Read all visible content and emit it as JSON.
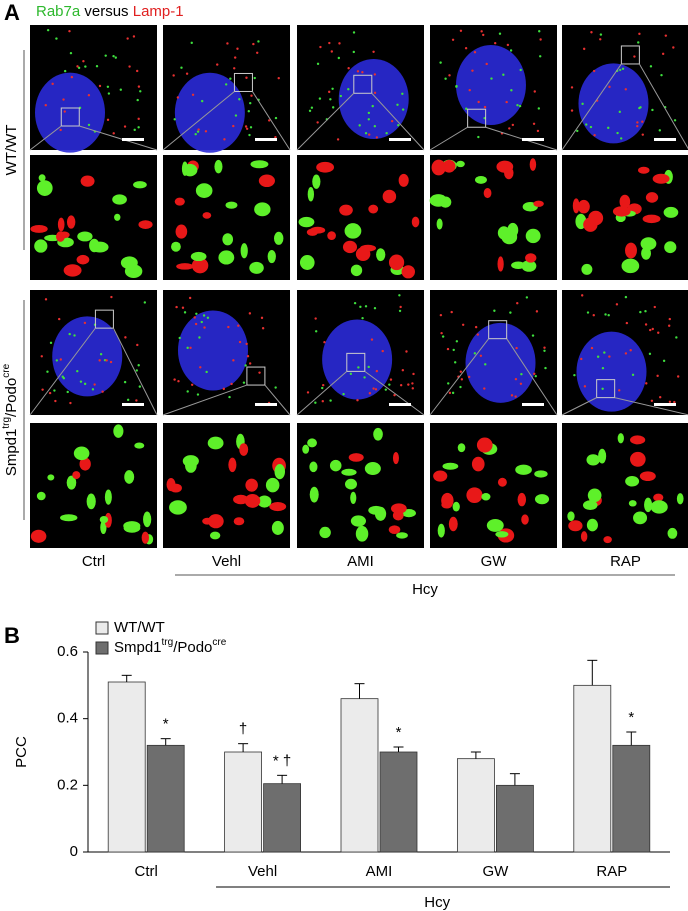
{
  "panel_a": {
    "label": "A",
    "title": [
      "Rab7a",
      "versus",
      "Lamp-1"
    ],
    "rows": [
      "WT/WT",
      [
        "Smpd1",
        "trg",
        "/Podo",
        "cre"
      ]
    ],
    "columns": [
      "Ctrl",
      "Vehl",
      "AMI",
      "GW",
      "RAP"
    ],
    "group_label": "Hcy"
  },
  "chart_data": {
    "type": "bar",
    "label": "B",
    "y_label": "PCC",
    "categories": [
      "Ctrl",
      "Vehl",
      "AMI",
      "GW",
      "RAP"
    ],
    "group_label": "Hcy",
    "series": [
      {
        "name": "WT/WT",
        "color": "#ebebeb",
        "values": [
          0.51,
          0.3,
          0.46,
          0.28,
          0.5
        ],
        "errors": [
          0.02,
          0.025,
          0.045,
          0.02,
          0.075
        ],
        "markers": [
          null,
          "†",
          null,
          null,
          null
        ]
      },
      {
        "name": [
          "Smpd1",
          "trg",
          "/Podo",
          "cre"
        ],
        "color": "#6e6e6e",
        "values": [
          0.32,
          0.205,
          0.3,
          0.2,
          0.32
        ],
        "errors": [
          0.02,
          0.025,
          0.015,
          0.035,
          0.04
        ],
        "markers": [
          "*",
          "* †",
          "*",
          null,
          "*"
        ]
      }
    ],
    "ylim": [
      0,
      0.6
    ],
    "yticks": [
      0,
      0.2,
      0.4,
      0.6
    ]
  }
}
